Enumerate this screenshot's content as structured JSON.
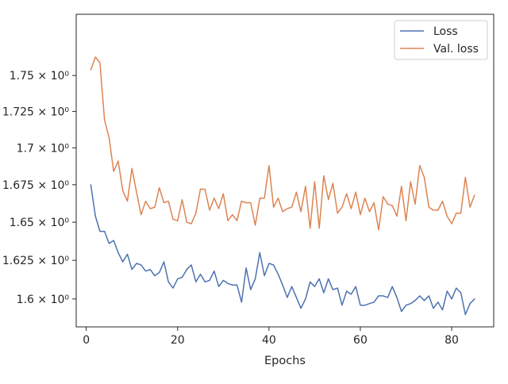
{
  "chart_data": {
    "type": "line",
    "xlabel": "Epochs",
    "ylabel": "",
    "title": "",
    "xlim": [
      -2.2,
      89.2
    ],
    "ylim": [
      1.5822,
      1.7935
    ],
    "yscale": "log",
    "grid": false,
    "legend_position": "top-right",
    "x_ticks": [
      0,
      20,
      40,
      60,
      80
    ],
    "x_tick_labels": [
      "0",
      "20",
      "40",
      "60",
      "80"
    ],
    "y_ticks": [
      1.6,
      1.625,
      1.65,
      1.675,
      1.7,
      1.725,
      1.75
    ],
    "y_tick_labels": [
      "1.6 × 10⁰",
      "1.625 × 10⁰",
      "1.65 × 10⁰",
      "1.675 × 10⁰",
      "1.7 × 10⁰",
      "1.725 × 10⁰",
      "1.75 × 10⁰"
    ],
    "x": [
      1,
      2,
      3,
      4,
      5,
      6,
      7,
      8,
      9,
      10,
      11,
      12,
      13,
      14,
      15,
      16,
      17,
      18,
      19,
      20,
      21,
      22,
      23,
      24,
      25,
      26,
      27,
      28,
      29,
      30,
      31,
      32,
      33,
      34,
      35,
      36,
      37,
      38,
      39,
      40,
      41,
      42,
      43,
      44,
      45,
      46,
      47,
      48,
      49,
      50,
      51,
      52,
      53,
      54,
      55,
      56,
      57,
      58,
      59,
      60,
      61,
      62,
      63,
      64,
      65,
      66,
      67,
      68,
      69,
      70,
      71,
      72,
      73,
      74,
      75,
      76,
      77,
      78,
      79,
      80,
      81,
      82,
      83,
      84,
      85
    ],
    "series": [
      {
        "name": "Loss",
        "color": "#4c72b0",
        "values": [
          1.675,
          1.654,
          1.644,
          1.644,
          1.636,
          1.638,
          1.63,
          1.624,
          1.629,
          1.619,
          1.623,
          1.622,
          1.618,
          1.619,
          1.615,
          1.617,
          1.624,
          1.611,
          1.607,
          1.613,
          1.614,
          1.619,
          1.622,
          1.611,
          1.616,
          1.611,
          1.612,
          1.618,
          1.608,
          1.612,
          1.61,
          1.609,
          1.609,
          1.598,
          1.62,
          1.606,
          1.613,
          1.63,
          1.615,
          1.623,
          1.622,
          1.616,
          1.609,
          1.601,
          1.608,
          1.601,
          1.594,
          1.6,
          1.611,
          1.608,
          1.613,
          1.604,
          1.613,
          1.606,
          1.607,
          1.596,
          1.605,
          1.603,
          1.608,
          1.596,
          1.596,
          1.597,
          1.598,
          1.602,
          1.602,
          1.601,
          1.608,
          1.601,
          1.592,
          1.596,
          1.597,
          1.599,
          1.602,
          1.599,
          1.602,
          1.594,
          1.598,
          1.593,
          1.605,
          1.6,
          1.607,
          1.604,
          1.59,
          1.597,
          1.6
        ]
      },
      {
        "name": "Val. loss",
        "color": "#dd8452",
        "values": [
          1.754,
          1.763,
          1.759,
          1.719,
          1.707,
          1.684,
          1.691,
          1.671,
          1.664,
          1.686,
          1.67,
          1.655,
          1.664,
          1.659,
          1.66,
          1.673,
          1.663,
          1.664,
          1.652,
          1.651,
          1.665,
          1.65,
          1.649,
          1.656,
          1.672,
          1.672,
          1.658,
          1.666,
          1.659,
          1.669,
          1.651,
          1.655,
          1.651,
          1.664,
          1.663,
          1.663,
          1.648,
          1.666,
          1.666,
          1.688,
          1.66,
          1.666,
          1.657,
          1.659,
          1.66,
          1.67,
          1.657,
          1.674,
          1.646,
          1.677,
          1.646,
          1.681,
          1.665,
          1.676,
          1.656,
          1.66,
          1.669,
          1.659,
          1.67,
          1.655,
          1.666,
          1.657,
          1.663,
          1.645,
          1.667,
          1.662,
          1.661,
          1.654,
          1.674,
          1.651,
          1.677,
          1.662,
          1.688,
          1.68,
          1.66,
          1.658,
          1.658,
          1.664,
          1.654,
          1.649,
          1.656,
          1.656,
          1.68,
          1.66,
          1.668
        ]
      }
    ]
  }
}
